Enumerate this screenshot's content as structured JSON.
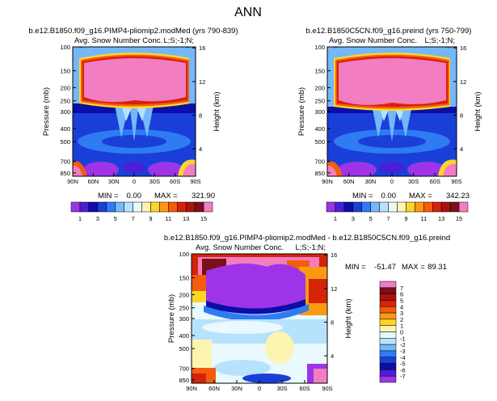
{
  "figure_title": "ANN",
  "chart_data": [
    {
      "type": "heatmap",
      "title": "b.e12.B1850.f09_g16.PIMP4-pliomip2.modMed (yrs 790-839)",
      "subtitle": "Avg. Snow Number Conc.",
      "units": "L;S;-1;N;",
      "xlabel": "",
      "ylabel": "Pressure (mb)",
      "ylabel_right": "Height (km)",
      "x_ticks": [
        "90N",
        "60N",
        "30N",
        "0",
        "30S",
        "60S",
        "90S"
      ],
      "y_ticks": [
        "100",
        "150",
        "200",
        "250",
        "300",
        "400",
        "500",
        "700",
        "850"
      ],
      "y_right_ticks": [
        "16",
        "12",
        "8",
        "4"
      ],
      "min_label": "MIN =",
      "min_value": "0.00",
      "max_label": "MAX =",
      "max_value": "321.90"
    },
    {
      "type": "heatmap",
      "title": "b.e12.B1850C5CN.f09_g16.preind (yrs 750-799)",
      "subtitle": "Avg. Snow Number Conc.",
      "units": "L;S;-1;N;",
      "xlabel": "",
      "ylabel": "Pressure (mb)",
      "ylabel_right": "Height (km)",
      "x_ticks": [
        "90N",
        "60N",
        "30N",
        "0",
        "30S",
        "60S",
        "90S"
      ],
      "y_ticks": [
        "100",
        "150",
        "200",
        "250",
        "300",
        "400",
        "500",
        "700",
        "850"
      ],
      "y_right_ticks": [
        "16",
        "12",
        "8",
        "4"
      ],
      "min_label": "MIN =",
      "min_value": "0.00",
      "max_label": "MAX =",
      "max_value": "342.23"
    },
    {
      "type": "heatmap",
      "title": "b.e12.B1850.f09_g16.PIMP4-pliomip2.modMed - b.e12.B1850C5CN.f09_g16.preind",
      "subtitle": "Avg. Snow Number Conc.",
      "units": "L;S;-1;N;",
      "xlabel": "",
      "ylabel": "Pressure (mb)",
      "ylabel_right": "Height (km)",
      "x_ticks": [
        "90N",
        "60N",
        "30N",
        "0",
        "30S",
        "60S",
        "90S"
      ],
      "y_ticks": [
        "100",
        "150",
        "200",
        "250",
        "300",
        "400",
        "500",
        "700",
        "850"
      ],
      "y_right_ticks": [
        "16",
        "12",
        "8",
        "4"
      ],
      "min_label": "MIN =",
      "min_value": "-51.47",
      "max_label": "MAX =",
      "max_value": "89.31"
    }
  ],
  "colorbar_top": {
    "labels": [
      "1",
      "3",
      "5",
      "7",
      "9",
      "11",
      "13",
      "15"
    ],
    "colors": [
      "#9d34e8",
      "#4a1fd9",
      "#0b0fa8",
      "#1a3fd8",
      "#2f7bf2",
      "#74b8fa",
      "#b7e2fd",
      "#e9f9fd",
      "#fdf4b2",
      "#fcd52b",
      "#fb9a12",
      "#f45d0c",
      "#d5230a",
      "#a8130e",
      "#7a1018",
      "#f27ec1"
    ]
  },
  "colorbar_diff": {
    "labels": [
      "7",
      "6",
      "5",
      "4",
      "3",
      "2",
      "1",
      "0",
      "-1",
      "-2",
      "-3",
      "-4",
      "-5",
      "-6",
      "-7"
    ],
    "colors": [
      "#f27ec1",
      "#7a1018",
      "#a8130e",
      "#d5230a",
      "#f45d0c",
      "#fb9a12",
      "#fcd52b",
      "#fdf4b2",
      "#e9f9fd",
      "#b7e2fd",
      "#74b8fa",
      "#2f7bf2",
      "#1a3fd8",
      "#0b0fa8",
      "#4a1fd9",
      "#9d34e8"
    ]
  }
}
